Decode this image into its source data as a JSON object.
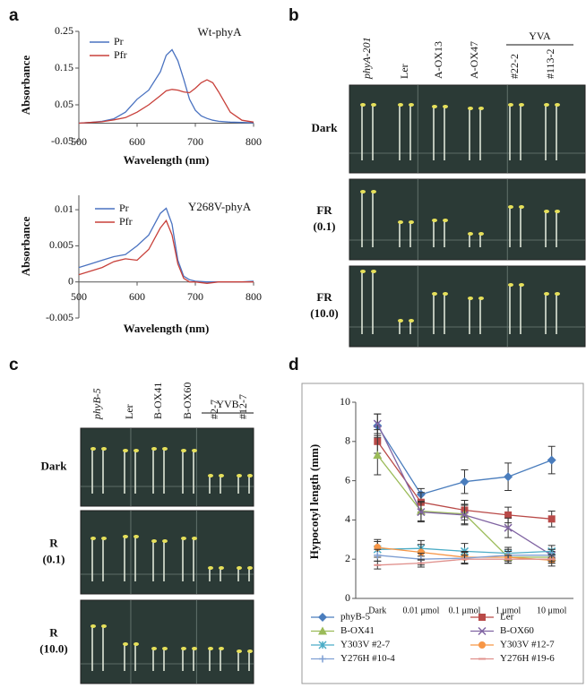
{
  "panel_letters": [
    "a",
    "b",
    "c",
    "d"
  ],
  "chart_data": [
    {
      "type": "line",
      "title": "Wt-phyA",
      "x_label": "Wavelength  (nm)",
      "y_label": "Absorbance",
      "x": [
        500,
        520,
        540,
        560,
        580,
        600,
        620,
        640,
        650,
        660,
        670,
        680,
        690,
        700,
        710,
        720,
        730,
        740,
        760,
        780,
        800
      ],
      "series": [
        {
          "name": "Pr",
          "color": "#4a72c0",
          "values": [
            0,
            0.002,
            0.005,
            0.012,
            0.03,
            0.065,
            0.09,
            0.14,
            0.185,
            0.2,
            0.17,
            0.12,
            0.065,
            0.035,
            0.02,
            0.013,
            0.008,
            0.005,
            0.003,
            0.002,
            0.001
          ]
        },
        {
          "name": "Pfr",
          "color": "#c8403a",
          "values": [
            0,
            0.002,
            0.004,
            0.009,
            0.015,
            0.03,
            0.05,
            0.075,
            0.088,
            0.092,
            0.09,
            0.085,
            0.083,
            0.095,
            0.11,
            0.118,
            0.11,
            0.085,
            0.03,
            0.008,
            0.003
          ]
        }
      ],
      "xlim": [
        500,
        800
      ],
      "xticks": [
        500,
        600,
        700,
        800
      ],
      "ylim": [
        -0.05,
        0.25
      ],
      "yticks": [
        -0.05,
        0.05,
        0.15,
        0.25
      ]
    },
    {
      "type": "line",
      "title": "Y268V-phyA",
      "x_label": "Wavelength  (nm)",
      "y_label": "Absorbance",
      "x": [
        500,
        520,
        540,
        560,
        580,
        600,
        620,
        640,
        650,
        660,
        670,
        680,
        690,
        700,
        720,
        740,
        760,
        780,
        800
      ],
      "series": [
        {
          "name": "Pr",
          "color": "#4a72c0",
          "values": [
            0.002,
            0.0025,
            0.003,
            0.0035,
            0.0038,
            0.005,
            0.0065,
            0.0095,
            0.0102,
            0.008,
            0.003,
            0.0008,
            0.0003,
            0.0001,
            0,
            0,
            0,
            0,
            0.0001
          ]
        },
        {
          "name": "Pfr",
          "color": "#c8403a",
          "values": [
            0.001,
            0.0015,
            0.002,
            0.0028,
            0.0032,
            0.003,
            0.0045,
            0.0075,
            0.0085,
            0.0065,
            0.0025,
            0.0005,
            0,
            0,
            -0.0002,
            0,
            0,
            0,
            0
          ]
        }
      ],
      "xlim": [
        500,
        800
      ],
      "xticks": [
        500,
        600,
        700,
        800
      ],
      "ylim": [
        -0.005,
        0.012
      ],
      "yticks": [
        -0.005,
        0,
        0.005,
        0.01
      ]
    },
    {
      "type": "line",
      "y_label": "Hypocotyl length (mm)",
      "categories": [
        "Dark",
        "0.01 μmol",
        "0.1 μmol",
        "1 μmol",
        "10 μmol"
      ],
      "series": [
        {
          "name": "phyB-5",
          "color": "#4a7dbd",
          "marker": "diamond",
          "values": [
            8.8,
            5.3,
            5.95,
            6.2,
            7.05
          ],
          "errors": [
            0.6,
            0.3,
            0.6,
            0.7,
            0.7
          ]
        },
        {
          "name": "Ler",
          "color": "#b94a48",
          "marker": "square",
          "values": [
            8.0,
            4.9,
            4.5,
            4.25,
            4.05
          ],
          "errors": [
            0.6,
            0.5,
            0.5,
            0.4,
            0.4
          ]
        },
        {
          "name": "B-OX41",
          "color": "#9bbb59",
          "marker": "triangle",
          "values": [
            7.3,
            4.45,
            4.3,
            2.1,
            2.1
          ],
          "errors": [
            1.0,
            0.5,
            0.5,
            0.3,
            0.3
          ]
        },
        {
          "name": "B-OX60",
          "color": "#8064a2",
          "marker": "x",
          "values": [
            8.9,
            4.4,
            4.25,
            3.6,
            2.2
          ],
          "errors": [
            0.5,
            0.5,
            0.5,
            0.5,
            0.3
          ]
        },
        {
          "name": "Y303V #2-7",
          "color": "#4bacc6",
          "marker": "star",
          "values": [
            2.5,
            2.55,
            2.4,
            2.3,
            2.4
          ],
          "errors": [
            0.4,
            0.4,
            0.4,
            0.3,
            0.3
          ]
        },
        {
          "name": "Y303V #12-7",
          "color": "#f79646",
          "marker": "circle",
          "values": [
            2.6,
            2.35,
            2.1,
            2.1,
            1.95
          ],
          "errors": [
            0.4,
            0.4,
            0.3,
            0.3,
            0.3
          ]
        },
        {
          "name": "Y276H #10-4",
          "color": "#7f9fd3",
          "marker": "plus",
          "values": [
            2.2,
            2.0,
            2.05,
            2.2,
            2.2
          ],
          "errors": [
            0.3,
            0.3,
            0.3,
            0.3,
            0.3
          ]
        },
        {
          "name": "Y276H #19-6",
          "color": "#e0908c",
          "marker": "dash",
          "values": [
            1.7,
            1.8,
            2.0,
            2.0,
            2.0
          ],
          "errors": [
            0.2,
            0.2,
            0.2,
            0.2,
            0.2
          ]
        }
      ],
      "ylim": [
        0,
        10
      ],
      "yticks": [
        0,
        2,
        4,
        6,
        8,
        10
      ]
    }
  ],
  "photo_panels": [
    {
      "columns": [
        "phyA-201",
        "Ler",
        "A-OX13",
        "A-OX47",
        "#22-2",
        "#113-2"
      ],
      "group_label": "YVA",
      "rows": [
        [
          "Dark"
        ],
        [
          "FR",
          "(0.1)"
        ],
        [
          "FR",
          "(10.0)"
        ]
      ]
    },
    {
      "columns": [
        "phyB-5",
        "Ler",
        "B-OX41",
        "B-OX60",
        "#2-7",
        "#12-7"
      ],
      "group_label": "YVB",
      "rows": [
        [
          "Dark"
        ],
        [
          "R",
          "(0.1)"
        ],
        [
          "R",
          "(10.0)"
        ]
      ]
    }
  ]
}
